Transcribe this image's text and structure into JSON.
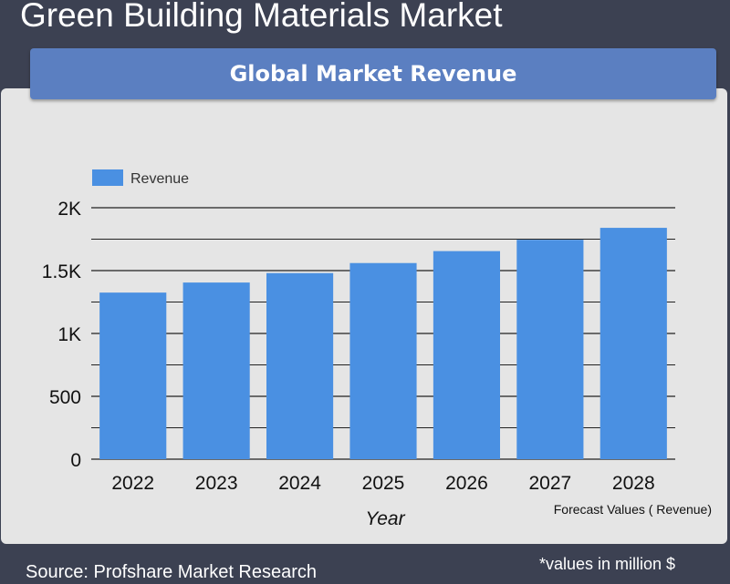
{
  "header": {
    "title": "Green Building Materials Market",
    "banner": "Global Market Revenue"
  },
  "footer": {
    "source": "Source: Profshare Market Research",
    "note": "*values in million $"
  },
  "colors": {
    "background": "#3c4152",
    "panel": "#e5e5e5",
    "banner": "#5b7fc1",
    "bar": "#4a90e2"
  },
  "chart_data": {
    "type": "bar",
    "categories": [
      "2022",
      "2023",
      "2024",
      "2025",
      "2026",
      "2027",
      "2028"
    ],
    "series": [
      {
        "name": "Revenue",
        "values": [
          1325,
          1405,
          1480,
          1560,
          1655,
          1745,
          1840
        ]
      }
    ],
    "ylim": [
      0,
      2000
    ],
    "yticks": [
      0,
      500,
      1000,
      1500,
      2000
    ],
    "ytick_labels": [
      "0",
      "500",
      "1K",
      "1.5K",
      "2K"
    ],
    "minor_gridlines": true,
    "xlabel": "Year",
    "ylabel": "",
    "annotation": "Forecast Values ( Revenue)",
    "legend_position": "top-left",
    "grid": true
  }
}
